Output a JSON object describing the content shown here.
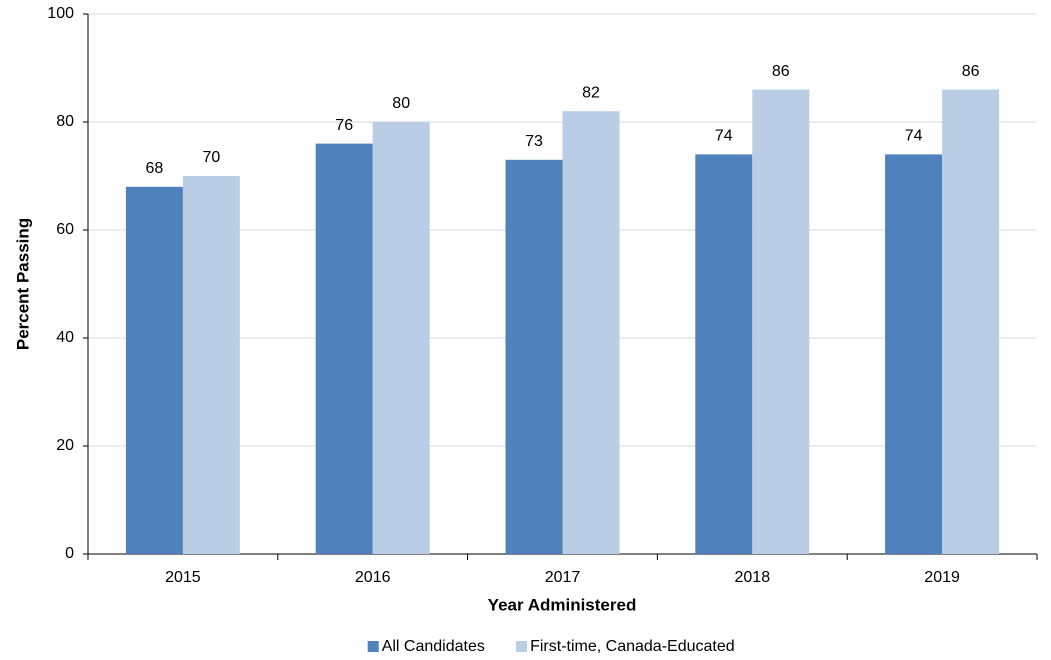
{
  "chart_data": {
    "type": "bar",
    "x_label": "Year Administered",
    "y_label": "Percent Passing",
    "categories": [
      "2015",
      "2016",
      "2017",
      "2018",
      "2019"
    ],
    "series": [
      {
        "name": "All Candidates",
        "color": "#4f81bd",
        "values": [
          68,
          76,
          73,
          74,
          74
        ]
      },
      {
        "name": "First-time, Canada-Educated",
        "color": "#b9cde5",
        "values": [
          70,
          80,
          82,
          86,
          86
        ]
      }
    ],
    "ylim": [
      0,
      100
    ],
    "yticks": [
      0,
      20,
      40,
      60,
      80,
      100
    ],
    "grid": true,
    "legend": "bottom"
  }
}
